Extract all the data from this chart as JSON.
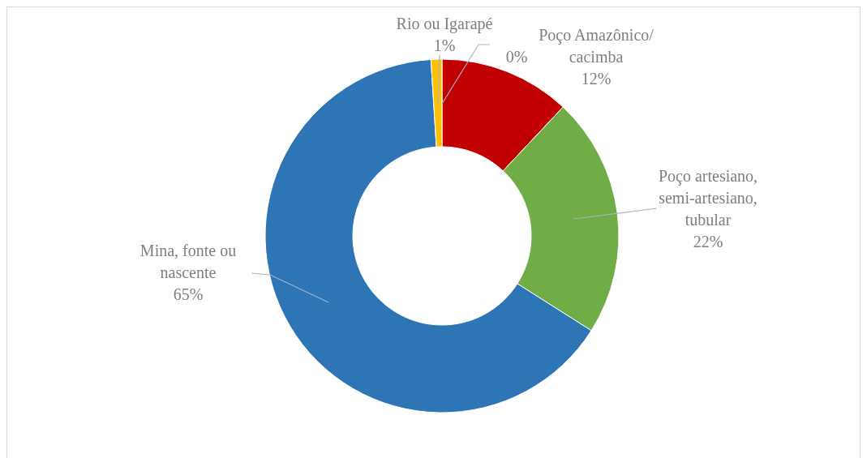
{
  "chart_data": {
    "type": "donut",
    "categories": [
      null,
      "Poço Amazônico/\ncacimba",
      "Poço artesiano,\nsemi-artesiano,\ntubular",
      "Mina, fonte ou\nnascente",
      "Rio ou Igarapé"
    ],
    "values": [
      0,
      12,
      22,
      65,
      1
    ],
    "value_labels": [
      "0%",
      "12%",
      "22%",
      "65%",
      "1%"
    ],
    "colors": [
      "#a5a5a5",
      "#c00000",
      "#70ad47",
      "#2e75b6",
      "#ffc000"
    ],
    "legend": false
  }
}
